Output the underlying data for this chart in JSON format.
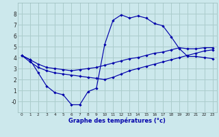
{
  "xlabel": "Graphe des températures (°c)",
  "background_color": "#cce8ec",
  "grid_color": "#aacccc",
  "line_color": "#0000aa",
  "xlim": [
    -0.5,
    23.5
  ],
  "ylim": [
    -1.0,
    9.0
  ],
  "xticks": [
    0,
    1,
    2,
    3,
    4,
    5,
    6,
    7,
    8,
    9,
    10,
    11,
    12,
    13,
    14,
    15,
    16,
    17,
    18,
    19,
    20,
    21,
    22,
    23
  ],
  "yticks": [
    0,
    1,
    2,
    3,
    4,
    5,
    6,
    7,
    8
  ],
  "ytick_labels": [
    "-0",
    "1",
    "2",
    "3",
    "4",
    "5",
    "6",
    "7",
    "8"
  ],
  "series": [
    {
      "x": [
        0,
        1,
        2,
        3,
        4,
        5,
        6,
        7,
        8,
        9,
        10,
        11,
        12,
        13,
        14,
        15,
        16,
        17,
        18,
        19,
        20,
        21,
        22,
        23
      ],
      "y": [
        4.2,
        3.8,
        2.6,
        1.4,
        0.8,
        0.6,
        -0.3,
        -0.3,
        0.9,
        1.2,
        5.2,
        7.4,
        7.9,
        7.6,
        7.8,
        7.6,
        7.1,
        6.9,
        5.9,
        4.8,
        4.1,
        4.1,
        4.0,
        3.9
      ]
    },
    {
      "x": [
        0,
        1,
        2,
        3,
        4,
        5,
        6,
        7,
        8,
        9,
        10,
        11,
        12,
        13,
        14,
        15,
        16,
        17,
        18,
        19,
        20,
        21,
        22,
        23
      ],
      "y": [
        4.2,
        3.8,
        3.4,
        3.1,
        3.0,
        2.9,
        2.8,
        2.9,
        3.0,
        3.1,
        3.3,
        3.5,
        3.7,
        3.9,
        4.0,
        4.2,
        4.4,
        4.5,
        4.7,
        4.9,
        4.8,
        4.8,
        4.9,
        4.9
      ]
    },
    {
      "x": [
        0,
        1,
        2,
        3,
        4,
        5,
        6,
        7,
        8,
        9,
        10,
        11,
        12,
        13,
        14,
        15,
        16,
        17,
        18,
        19,
        20,
        21,
        22,
        23
      ],
      "y": [
        4.2,
        3.6,
        3.1,
        2.8,
        2.6,
        2.5,
        2.4,
        2.3,
        2.2,
        2.1,
        2.0,
        2.2,
        2.5,
        2.8,
        3.0,
        3.2,
        3.4,
        3.6,
        3.8,
        4.0,
        4.2,
        4.4,
        4.6,
        4.7
      ]
    }
  ]
}
